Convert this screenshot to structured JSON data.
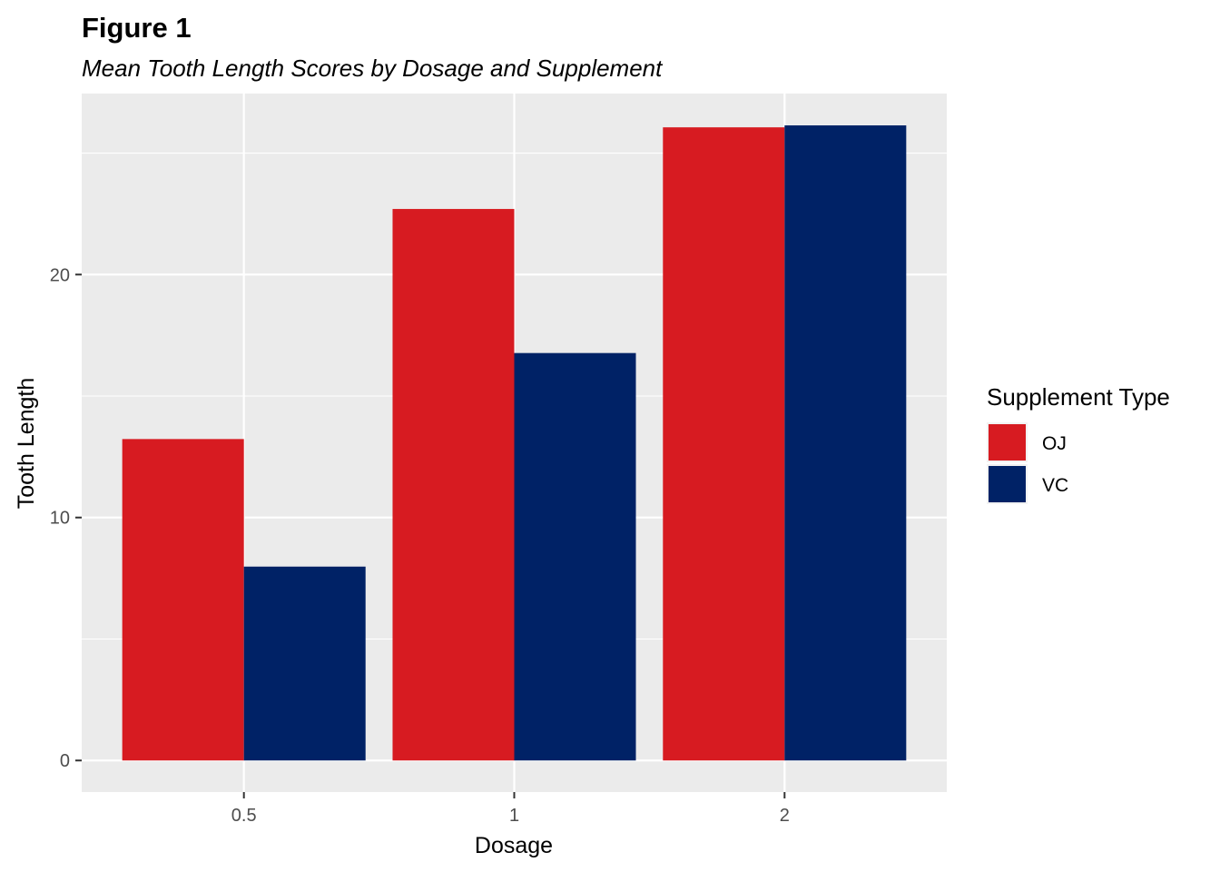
{
  "chart_data": {
    "type": "bar",
    "title": "Figure 1",
    "subtitle": "Mean Tooth Length Scores by Dosage and Supplement",
    "xlabel": "Dosage",
    "ylabel": "Tooth Length",
    "categories": [
      "0.5",
      "1",
      "2"
    ],
    "series": [
      {
        "name": "OJ",
        "color": "#d71b21",
        "values": [
          13.23,
          22.7,
          26.06
        ]
      },
      {
        "name": "VC",
        "color": "#002266",
        "values": [
          7.98,
          16.77,
          26.14
        ]
      }
    ],
    "ylim": [
      -1.3,
      27.45
    ],
    "yticks": [
      0,
      10,
      20
    ],
    "grid": true,
    "legend": {
      "title": "Supplement Type",
      "position": "right"
    },
    "panel_background": "#ebebeb",
    "grid_color": "#ffffff"
  }
}
